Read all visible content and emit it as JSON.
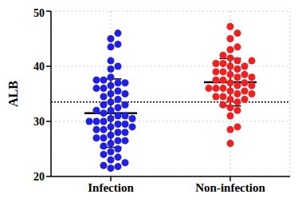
{
  "chart_data": {
    "type": "scatter",
    "y_label": "ALB",
    "ylim": [
      20,
      50
    ],
    "yticks": [
      20,
      30,
      40,
      50
    ],
    "grid": true,
    "reference_line": 33.5,
    "series": [
      {
        "name": "Infection",
        "color": "#1f1fe6",
        "mean": 31.5,
        "sd": 6.2,
        "values": [
          46,
          45,
          44,
          43.5,
          41,
          40,
          39.5,
          38,
          37.5,
          37.5,
          37,
          37,
          36.5,
          36,
          36,
          35.5,
          35,
          35,
          34.5,
          34,
          33.5,
          33,
          33,
          32.5,
          32,
          32,
          31.5,
          31,
          31,
          30.5,
          30.5,
          30,
          30,
          30,
          29.5,
          29.5,
          29,
          29,
          28.5,
          28.5,
          28,
          28,
          27.5,
          27,
          27,
          26.5,
          26.5,
          26,
          25.5,
          25,
          24.5,
          24,
          23.5,
          23,
          22.5,
          22,
          21.8,
          21.5
        ]
      },
      {
        "name": "Non-infection",
        "color": "#f02020",
        "mean": 37.1,
        "sd": 4.3,
        "values": [
          47.2,
          46,
          45,
          43.5,
          43,
          42,
          41.5,
          41,
          41,
          40.5,
          40.5,
          40,
          40,
          39.5,
          39,
          39,
          38.5,
          38.5,
          38,
          38,
          37.5,
          37.5,
          37,
          37,
          36.5,
          36.5,
          36,
          36,
          36,
          35.5,
          35.5,
          35,
          35,
          34.5,
          34.5,
          34,
          34,
          33.5,
          33,
          32.5,
          32,
          31,
          29,
          28.5,
          26
        ]
      }
    ]
  }
}
